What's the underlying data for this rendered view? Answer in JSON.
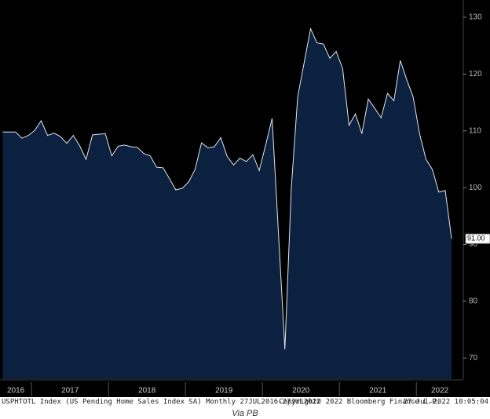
{
  "chart_data": {
    "type": "area",
    "fill_color": "#0b213f",
    "line_color": "#dfe6ee",
    "x": [
      2016.625,
      2016.708,
      2016.792,
      2016.875,
      2016.958,
      2017.042,
      2017.125,
      2017.208,
      2017.292,
      2017.375,
      2017.458,
      2017.542,
      2017.625,
      2017.708,
      2017.792,
      2017.875,
      2017.958,
      2018.042,
      2018.125,
      2018.208,
      2018.292,
      2018.375,
      2018.458,
      2018.542,
      2018.625,
      2018.708,
      2018.792,
      2018.875,
      2018.958,
      2019.042,
      2019.125,
      2019.208,
      2019.292,
      2019.375,
      2019.458,
      2019.542,
      2019.625,
      2019.708,
      2019.792,
      2019.875,
      2019.958,
      2020.042,
      2020.125,
      2020.208,
      2020.292,
      2020.375,
      2020.458,
      2020.542,
      2020.625,
      2020.708,
      2020.792,
      2020.875,
      2020.958,
      2021.042,
      2021.125,
      2021.208,
      2021.292,
      2021.375,
      2021.458,
      2021.542,
      2021.625,
      2021.708,
      2021.792,
      2021.875,
      2021.958,
      2022.042,
      2022.125,
      2022.208,
      2022.292,
      2022.375,
      2022.458
    ],
    "values": [
      109.8,
      109.8,
      109.8,
      108.7,
      109.2,
      110.1,
      111.8,
      109.2,
      109.6,
      109.0,
      107.8,
      109.2,
      107.4,
      105.0,
      109.3,
      109.4,
      109.5,
      105.6,
      107.3,
      107.5,
      107.2,
      107.1,
      106.0,
      105.6,
      103.6,
      103.5,
      101.6,
      99.6,
      99.9,
      101.0,
      103.2,
      107.9,
      107.0,
      107.2,
      108.8,
      105.5,
      104.0,
      105.2,
      104.6,
      105.8,
      103.0,
      107.5,
      112.2,
      92.0,
      71.5,
      100.0,
      116.0,
      122.0,
      128.0,
      125.5,
      125.3,
      122.8,
      124.0,
      121.0,
      111.0,
      113.0,
      109.5,
      115.6,
      114.0,
      112.3,
      116.6,
      115.3,
      122.4,
      119.0,
      116.0,
      109.5,
      105.0,
      103.2,
      99.2,
      99.5,
      91.0
    ],
    "value_labels": [
      null,
      null,
      null,
      null,
      null,
      null,
      null,
      null,
      null,
      null,
      null,
      null,
      null,
      null,
      null,
      null,
      null,
      null,
      null,
      null,
      null,
      null,
      null,
      null,
      null,
      null,
      null,
      null,
      null,
      null,
      null,
      null,
      null,
      null,
      null,
      null,
      null,
      null,
      null,
      null,
      null,
      null,
      null,
      null,
      null,
      null,
      null,
      null,
      null,
      null,
      null,
      null,
      null,
      null,
      null,
      null,
      null,
      null,
      null,
      null,
      null,
      null,
      null,
      null,
      null,
      null,
      null,
      null,
      null,
      null,
      "91.00"
    ],
    "xlim": [
      2016.59,
      2022.61
    ],
    "xticks": [
      {
        "value": 2016,
        "label": "2016"
      },
      {
        "value": 2017,
        "label": "2017"
      },
      {
        "value": 2018,
        "label": "2018"
      },
      {
        "value": 2019,
        "label": "2019"
      },
      {
        "value": 2020,
        "label": "2020"
      },
      {
        "value": 2021,
        "label": "2021"
      },
      {
        "value": 2022,
        "label": "2022"
      }
    ],
    "ylim": [
      66.3,
      133.05
    ],
    "yticks": [
      70,
      80,
      90,
      100,
      110,
      120,
      130
    ],
    "footer": [
      "USPHTOTL Index (US Pending Home Sales Index SA)  Monthly 27JUL2016-27JUL2022",
      "Copyright© 2022 Bloomberg Finance L.P.",
      "27-Jul-2022 10:05:04"
    ],
    "caption": "Via PB"
  }
}
